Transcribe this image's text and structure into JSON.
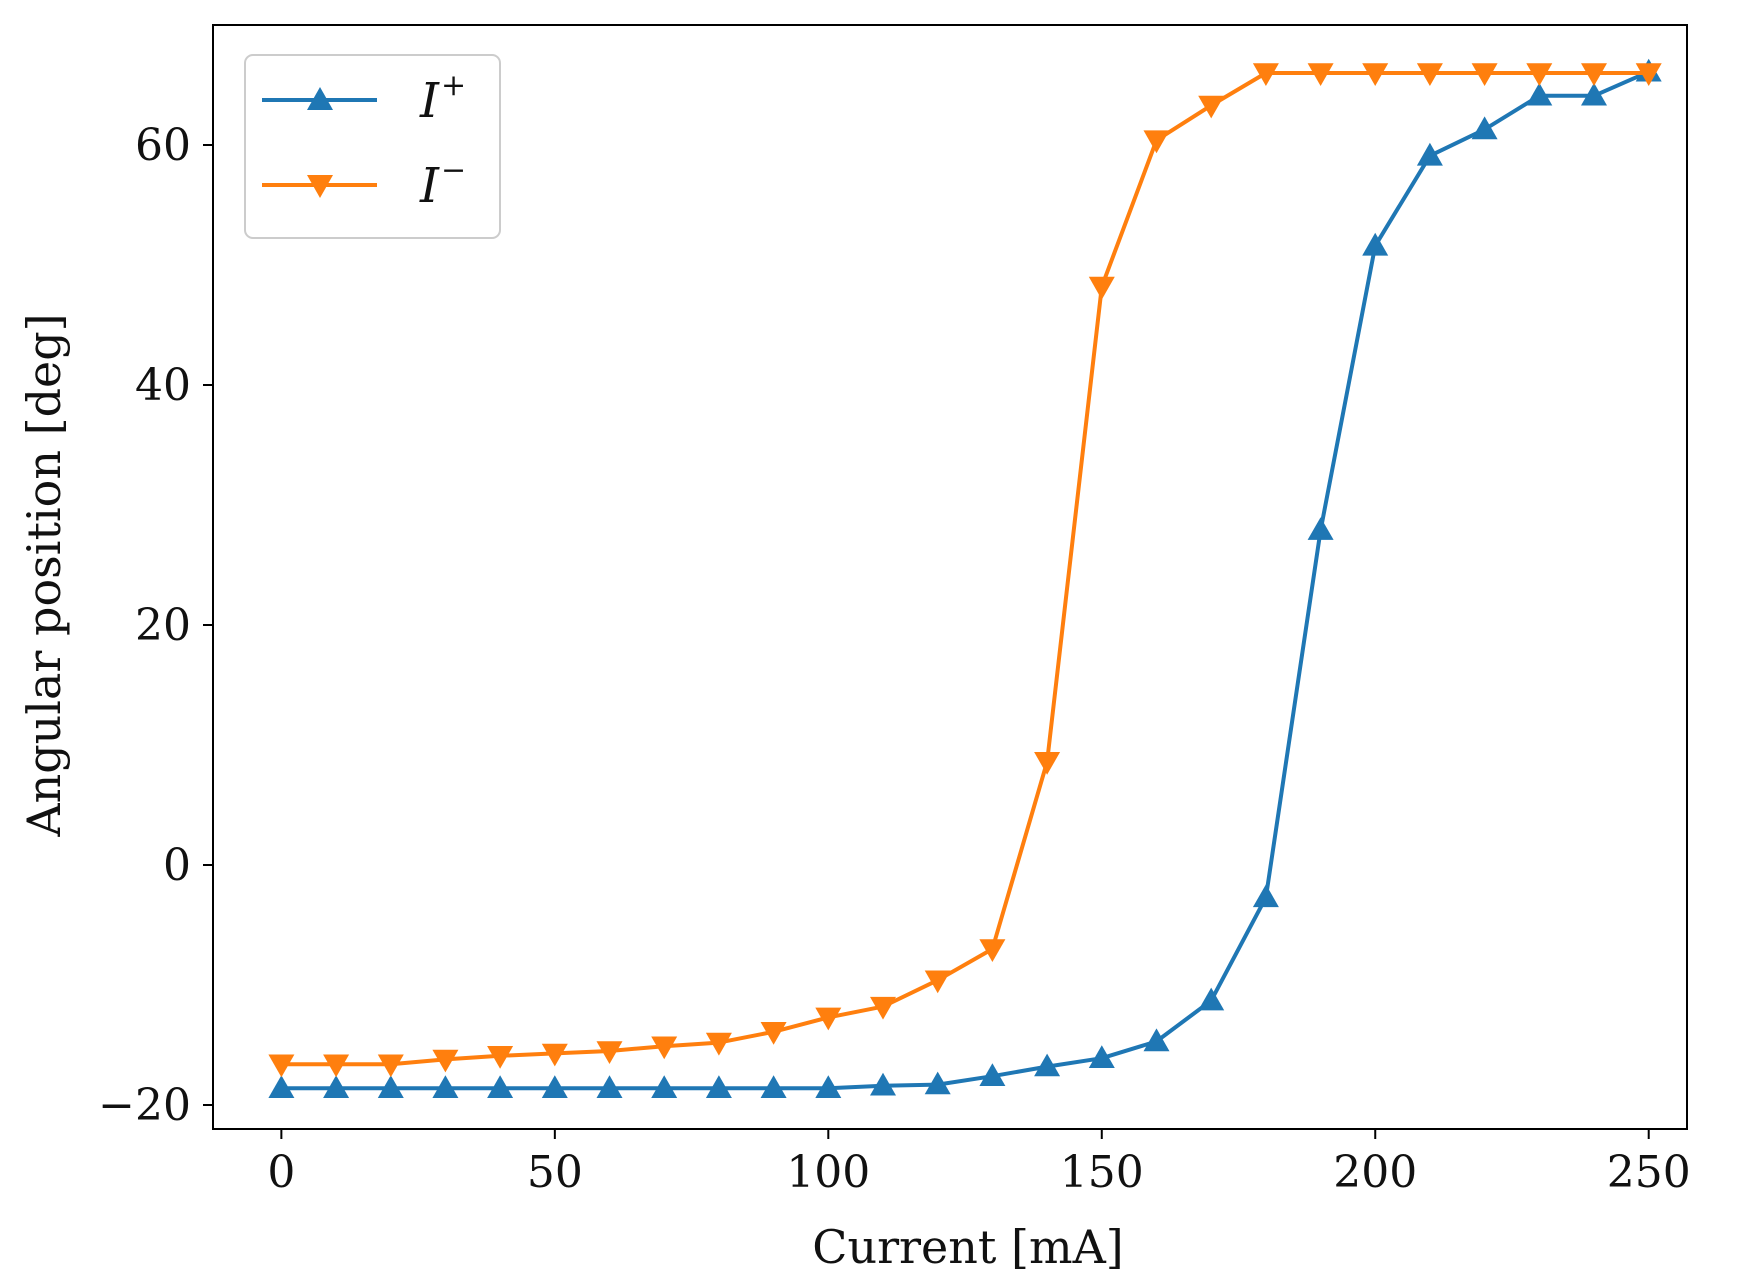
{
  "colors": {
    "i_plus": "#1f77b4",
    "i_minus": "#ff7f0e",
    "axis": "#000000",
    "legend_border": "#cccccc"
  },
  "chart_data": {
    "type": "line",
    "title": "",
    "xlabel": "Current [mA]",
    "ylabel": "Angular position [deg]",
    "xlim": [
      -12.5,
      257
    ],
    "ylim": [
      -22,
      70
    ],
    "xticks": [
      0,
      50,
      100,
      150,
      200,
      250
    ],
    "yticks": [
      -20,
      0,
      20,
      40,
      60
    ],
    "ytick_labels": [
      "−20",
      "0",
      "20",
      "40",
      "60"
    ],
    "legend_position": "top-left",
    "x": [
      0,
      10,
      20,
      30,
      40,
      50,
      60,
      70,
      80,
      90,
      100,
      110,
      120,
      130,
      140,
      150,
      160,
      170,
      180,
      190,
      200,
      210,
      220,
      230,
      240,
      250
    ],
    "series": [
      {
        "name": "I+",
        "legend_base": "I",
        "legend_sup": "+",
        "marker": "triangle-up",
        "color": "#1f77b4",
        "values": [
          -18.6,
          -18.6,
          -18.6,
          -18.6,
          -18.6,
          -18.6,
          -18.6,
          -18.6,
          -18.6,
          -18.6,
          -18.6,
          -18.4,
          -18.3,
          -17.6,
          -16.8,
          -16.1,
          -14.7,
          -11.3,
          -2.7,
          27.9,
          51.6,
          59.1,
          61.3,
          64.1,
          64.1,
          66.1
        ]
      },
      {
        "name": "I−",
        "legend_base": "I",
        "legend_sup": "−",
        "marker": "triangle-down",
        "color": "#ff7f0e",
        "values": [
          -16.6,
          -16.6,
          -16.6,
          -16.2,
          -15.9,
          -15.7,
          -15.5,
          -15.1,
          -14.8,
          -13.9,
          -12.7,
          -11.8,
          -9.6,
          -7.0,
          8.6,
          48.2,
          60.4,
          63.3,
          66.0,
          66.0,
          66.0,
          66.0,
          66.0,
          66.0,
          66.0,
          66.0
        ]
      }
    ]
  }
}
